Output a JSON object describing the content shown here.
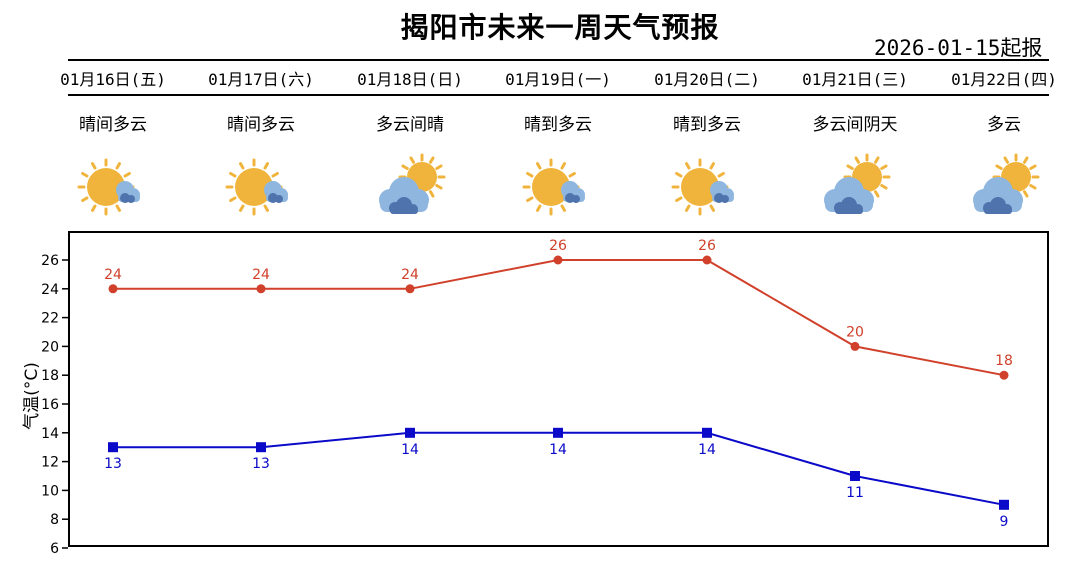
{
  "title": "揭阳市未来一周天气预报",
  "issued": "2026-01-15起报",
  "days": [
    {
      "date": "01月16日(五)",
      "condition": "晴间多云",
      "icon": "sunny-partly-cloudy-icon"
    },
    {
      "date": "01月17日(六)",
      "condition": "晴间多云",
      "icon": "sunny-partly-cloudy-icon"
    },
    {
      "date": "01月18日(日)",
      "condition": "多云间晴",
      "icon": "cloudy-sunny-icon"
    },
    {
      "date": "01月19日(一)",
      "condition": "晴到多云",
      "icon": "sunny-partly-cloudy-icon"
    },
    {
      "date": "01月20日(二)",
      "condition": "晴到多云",
      "icon": "sunny-partly-cloudy-icon"
    },
    {
      "date": "01月21日(三)",
      "condition": "多云间阴天",
      "icon": "cloudy-sunny-icon"
    },
    {
      "date": "01月22日(四)",
      "condition": "多云",
      "icon": "cloudy-sunny-icon"
    }
  ],
  "colors": {
    "high": "#d0402a",
    "low": "#0a0ac8",
    "sun": "#f0b43c",
    "cloud_light": "#8fb6df",
    "cloud_dark": "#4f73ad"
  },
  "chart_data": {
    "type": "line",
    "ylabel": "气温(°C)",
    "ylim": [
      6,
      28
    ],
    "yticks": [
      6,
      8,
      10,
      12,
      14,
      16,
      18,
      20,
      22,
      24,
      26
    ],
    "grid": false,
    "series": [
      {
        "name": "high",
        "values": [
          24,
          24,
          24,
          26,
          26,
          20,
          18
        ],
        "marker": "circle"
      },
      {
        "name": "low",
        "values": [
          13,
          13,
          14,
          14,
          14,
          11,
          9
        ],
        "marker": "square"
      }
    ]
  }
}
